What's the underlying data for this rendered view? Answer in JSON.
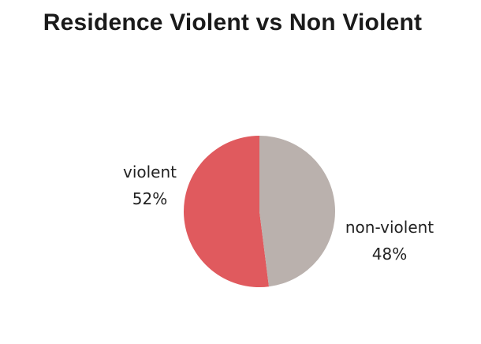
{
  "chart_data": {
    "type": "pie",
    "title": "Residence Violent vs Non Violent",
    "slices": [
      {
        "label": "violent",
        "value": 52,
        "value_label": "52%",
        "color": "#e05a5e"
      },
      {
        "label": "non-violent",
        "value": 48,
        "value_label": "48%",
        "color": "#bab1ad"
      }
    ],
    "legend": "none"
  }
}
